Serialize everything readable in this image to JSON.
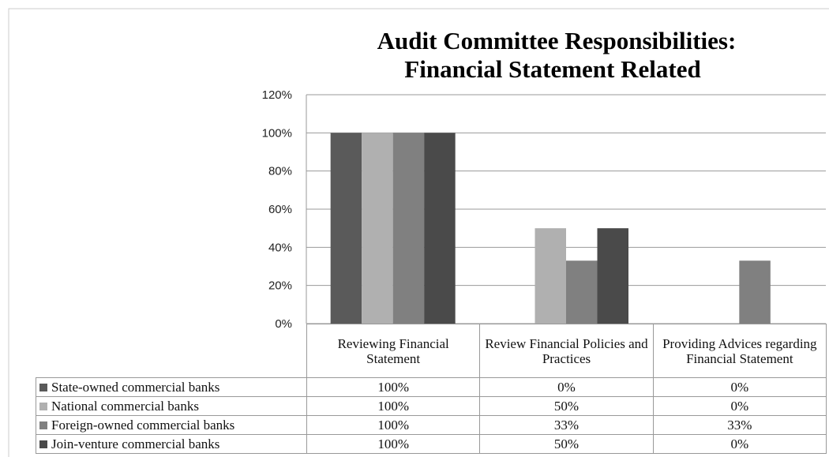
{
  "chart_data": {
    "type": "bar",
    "title": [
      "Audit Committee Responsibilities:",
      "Financial Statement Related"
    ],
    "categories": [
      "Reviewing Financial Statement",
      "Review Financial Policies and Practices",
      "Providing Advices regarding Financial Statement"
    ],
    "series": [
      {
        "name": "State-owned commercial banks",
        "color": "#5a5a5a",
        "values": [
          100,
          0,
          0
        ],
        "value_labels": [
          "100%",
          "0%",
          "0%"
        ]
      },
      {
        "name": "National commercial banks",
        "color": "#b0b0b0",
        "values": [
          100,
          50,
          0
        ],
        "value_labels": [
          "100%",
          "50%",
          "0%"
        ]
      },
      {
        "name": "Foreign-owned commercial banks",
        "color": "#808080",
        "values": [
          100,
          33,
          33
        ],
        "value_labels": [
          "100%",
          "33%",
          "33%"
        ]
      },
      {
        "name": "Join-venture commercial banks",
        "color": "#4a4a4a",
        "values": [
          100,
          50,
          0
        ],
        "value_labels": [
          "100%",
          "50%",
          "0%"
        ]
      }
    ],
    "ylim": [
      0,
      120
    ],
    "yticks": [
      {
        "value": 0,
        "label": "0%"
      },
      {
        "value": 20,
        "label": "20%"
      },
      {
        "value": 40,
        "label": "40%"
      },
      {
        "value": 60,
        "label": "60%"
      },
      {
        "value": 80,
        "label": "80%"
      },
      {
        "value": 100,
        "label": "100%"
      },
      {
        "value": 120,
        "label": "120%"
      }
    ],
    "grid": true
  }
}
